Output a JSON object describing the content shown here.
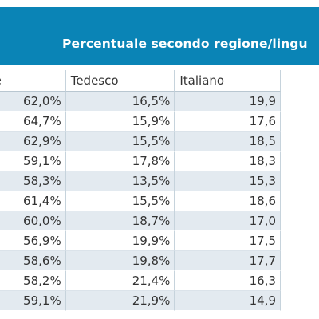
{
  "banner": {
    "title": "Percentuale secondo regione/lingu",
    "color": "#0a84b6"
  },
  "table": {
    "headers": [
      "ncese",
      "Tedesco",
      "Italiano"
    ],
    "rows": [
      [
        "62,0%",
        "16,5%",
        "19,9"
      ],
      [
        "64,7%",
        "15,9%",
        "17,6"
      ],
      [
        "62,9%",
        "15,5%",
        "18,5"
      ],
      [
        "59,1%",
        "17,8%",
        "18,3"
      ],
      [
        "58,3%",
        "13,5%",
        "15,3"
      ],
      [
        "61,4%",
        "15,5%",
        "18,6"
      ],
      [
        "60,0%",
        "18,7%",
        "17,0"
      ],
      [
        "56,9%",
        "19,9%",
        "17,5"
      ],
      [
        "58,6%",
        "19,8%",
        "17,7"
      ],
      [
        "58,2%",
        "21,4%",
        "16,3"
      ],
      [
        "59,1%",
        "21,9%",
        "14,9"
      ]
    ]
  }
}
